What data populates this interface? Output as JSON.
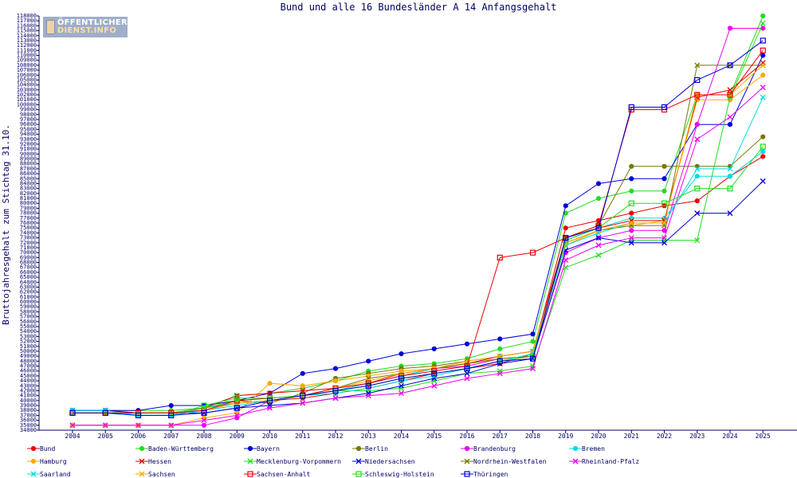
{
  "chart_data": {
    "type": "line",
    "title": "Bund und alle 16 Bundesländer A 14 Anfangsgehalt",
    "xlabel": "",
    "ylabel": "Bruttojahresgehalt zum Stichtag 31.10.",
    "ylim": [
      34000,
      118000
    ],
    "ytick_step": 1000,
    "grid": false,
    "legend_position": "bottom",
    "categories": [
      "2004",
      "2005",
      "2006",
      "2007",
      "2008",
      "2009",
      "2010",
      "2011",
      "2012",
      "2013",
      "2014",
      "2015",
      "2016",
      "2017",
      "2018",
      "2019",
      "2020",
      "2021",
      "2022",
      "2023",
      "2024",
      "2025"
    ],
    "series": [
      {
        "name": "Bund",
        "color": "#ee0000",
        "marker": "star",
        "values": [
          37500,
          37500,
          37500,
          37500,
          38500,
          39500,
          40000,
          40500,
          41500,
          42500,
          44000,
          45500,
          46500,
          47500,
          49500,
          75000,
          76500,
          78000,
          79500,
          80500,
          85500,
          89500
        ]
      },
      {
        "name": "Baden-Württemberg",
        "color": "#22dd22",
        "marker": "star",
        "values": [
          38000,
          38000,
          38000,
          38000,
          38500,
          41000,
          41500,
          42500,
          44000,
          46000,
          47000,
          47500,
          48500,
          50500,
          52000,
          78000,
          81000,
          82500,
          82500,
          102000,
          102000,
          118000
        ]
      },
      {
        "name": "Bayern",
        "color": "#0000dd",
        "marker": "star",
        "values": [
          38000,
          38000,
          38000,
          39000,
          39000,
          40000,
          41500,
          45500,
          46500,
          48000,
          49500,
          50500,
          51500,
          52500,
          53500,
          79500,
          84000,
          85000,
          85000,
          96000,
          96000,
          110000
        ]
      },
      {
        "name": "Berlin",
        "color": "#777700",
        "marker": "star",
        "values": [
          37500,
          37500,
          37500,
          37500,
          38500,
          40000,
          39500,
          41500,
          44500,
          45500,
          46500,
          47000,
          48000,
          49000,
          50000,
          73000,
          75500,
          87500,
          87500,
          87500,
          87500,
          93500
        ]
      },
      {
        "name": "Brandenburg",
        "color": "#ee00ee",
        "marker": "star",
        "values": [
          35000,
          35000,
          35000,
          35000,
          35000,
          36500,
          40000,
          41000,
          42000,
          43500,
          45000,
          46500,
          47000,
          48500,
          49000,
          70000,
          73000,
          74500,
          74500,
          96000,
          115500,
          115500
        ]
      },
      {
        "name": "Bremen",
        "color": "#00dddd",
        "marker": "star",
        "values": [
          38000,
          38000,
          37000,
          37000,
          38500,
          39500,
          40000,
          41000,
          42000,
          43500,
          45000,
          46500,
          47500,
          49000,
          50000,
          72500,
          75000,
          77000,
          77000,
          85500,
          85500,
          90500
        ]
      },
      {
        "name": "Hamburg",
        "color": "#ffaa00",
        "marker": "star",
        "values": [
          35000,
          35000,
          35000,
          35000,
          36500,
          37500,
          43500,
          43000,
          44000,
          45000,
          46000,
          46500,
          47500,
          48500,
          49000,
          71500,
          74500,
          75500,
          76500,
          101000,
          101000,
          106000
        ]
      },
      {
        "name": "Hessen",
        "color": "#ee0000",
        "marker": "x",
        "values": [
          38000,
          38000,
          37500,
          37500,
          38500,
          41000,
          41500,
          42000,
          42500,
          43500,
          45500,
          46500,
          47500,
          49000,
          50000,
          73000,
          75000,
          76500,
          76500,
          101500,
          103000,
          108500
        ]
      },
      {
        "name": "Mecklenburg-Vorpommern",
        "color": "#22dd22",
        "marker": "x",
        "values": [
          37500,
          37500,
          37500,
          37500,
          38500,
          40000,
          40500,
          41000,
          42000,
          42000,
          42500,
          44000,
          45500,
          46000,
          47000,
          67000,
          69500,
          72500,
          72500,
          72500,
          101500,
          116500
        ]
      },
      {
        "name": "Niedersachsen",
        "color": "#0000dd",
        "marker": "x",
        "values": [
          38000,
          38000,
          37500,
          37500,
          37500,
          38500,
          39000,
          39500,
          40500,
          41500,
          43000,
          44500,
          45500,
          47500,
          48500,
          70500,
          73000,
          72000,
          72000,
          78000,
          78000,
          84500
        ]
      },
      {
        "name": "Nordrhein-Westfalen",
        "color": "#777700",
        "marker": "x",
        "values": [
          37500,
          37500,
          37500,
          37500,
          38000,
          39500,
          40000,
          41000,
          42500,
          44500,
          45500,
          46500,
          47500,
          48500,
          49000,
          72000,
          74500,
          75500,
          75500,
          108000,
          108000,
          108000
        ]
      },
      {
        "name": "Rheinland-Pfalz",
        "color": "#ee00ee",
        "marker": "x",
        "values": [
          35000,
          35000,
          35000,
          35000,
          36000,
          37000,
          38500,
          39500,
          40500,
          41000,
          41500,
          43000,
          44500,
          45500,
          46500,
          68500,
          71500,
          73000,
          73000,
          93000,
          97500,
          103500
        ]
      },
      {
        "name": "Saarland",
        "color": "#00dddd",
        "marker": "x",
        "values": [
          38000,
          38000,
          37000,
          37000,
          38000,
          39000,
          40000,
          41000,
          41500,
          42500,
          44000,
          45000,
          46500,
          48000,
          49500,
          71500,
          74000,
          76000,
          76000,
          87000,
          87000,
          101500
        ]
      },
      {
        "name": "Sachsen",
        "color": "#ffaa00",
        "marker": "x",
        "values": [
          37500,
          37500,
          37500,
          37500,
          38000,
          39500,
          40000,
          41000,
          42500,
          44000,
          45500,
          46500,
          48000,
          49000,
          50000,
          72000,
          74500,
          76000,
          76000,
          102000,
          102000,
          108000
        ]
      },
      {
        "name": "Sachsen-Anhalt",
        "color": "#ee0000",
        "marker": "square",
        "values": [
          37500,
          37500,
          37500,
          37500,
          38000,
          40000,
          40500,
          41000,
          42500,
          43500,
          45000,
          46000,
          47000,
          69000,
          70000,
          73000,
          75500,
          99000,
          99000,
          102000,
          102000,
          111000
        ]
      },
      {
        "name": "Schleswig-Holstein",
        "color": "#22dd22",
        "marker": "square",
        "values": [
          37500,
          37500,
          37000,
          37000,
          39000,
          40500,
          40500,
          41000,
          42000,
          43000,
          44500,
          45500,
          46500,
          48000,
          49000,
          72500,
          75000,
          80000,
          80000,
          83000,
          83000,
          91500
        ]
      },
      {
        "name": "Thüringen",
        "color": "#0000dd",
        "marker": "square",
        "values": [
          37500,
          37500,
          37000,
          37000,
          37500,
          38500,
          40000,
          41000,
          42000,
          43000,
          44500,
          45500,
          46500,
          48000,
          48500,
          73000,
          75000,
          99500,
          99500,
          105000,
          108000,
          113000
        ]
      }
    ]
  },
  "logo": {
    "line1": "ÖFFENTLICHER",
    "line2": "DIENST.INFO"
  }
}
